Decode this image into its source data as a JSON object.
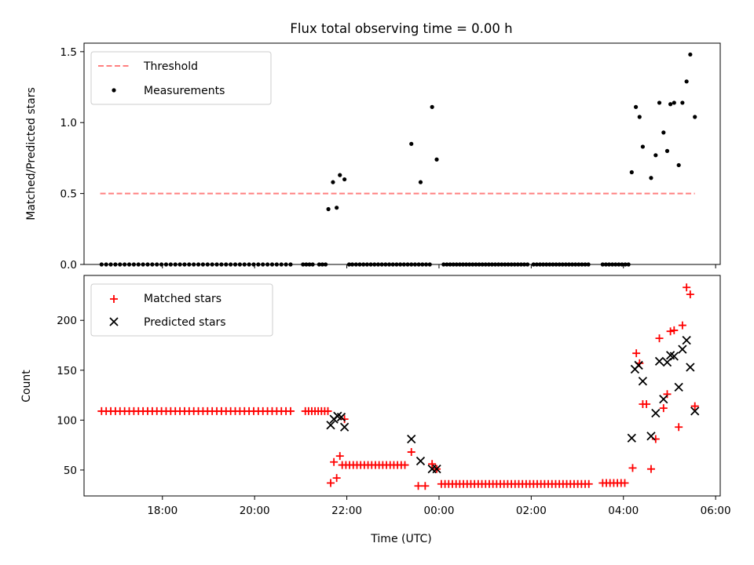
{
  "chart_data": [
    {
      "type": "scatter",
      "title": "Flux total observing time = 0.00 h",
      "xlabel": "",
      "ylabel": "Matched/Predicted stars",
      "xlim_hours": [
        16.3,
        30.1
      ],
      "ylim": [
        0,
        1.56
      ],
      "yticks": [
        "0.0",
        "0.5",
        "1.0",
        "1.5"
      ],
      "legend": {
        "placement": "top-left",
        "entries": [
          "Threshold",
          "Measurements"
        ]
      },
      "threshold": {
        "name": "Threshold",
        "value": 0.5,
        "x_range_hours": [
          16.65,
          29.55
        ],
        "color": "#ff7f7f"
      },
      "series": [
        {
          "name": "Measurements",
          "color": "#000000",
          "zero_points_hours": [
            16.68,
            16.78,
            16.88,
            16.98,
            17.08,
            17.18,
            17.28,
            17.38,
            17.48,
            17.58,
            17.68,
            17.78,
            17.88,
            17.98,
            18.08,
            18.18,
            18.28,
            18.38,
            18.48,
            18.58,
            18.68,
            18.78,
            18.88,
            18.98,
            19.08,
            19.18,
            19.28,
            19.38,
            19.48,
            19.58,
            19.68,
            19.78,
            19.88,
            19.98,
            20.08,
            20.18,
            20.28,
            20.38,
            20.48,
            20.58,
            20.68,
            20.78,
            21.05,
            21.12,
            21.19,
            21.26,
            21.4,
            21.47,
            21.54,
            22.05,
            22.12,
            22.2,
            22.28,
            22.36,
            22.44,
            22.52,
            22.6,
            22.68,
            22.76,
            22.84,
            22.92,
            23,
            23.08,
            23.16,
            23.24,
            23.32,
            23.4,
            23.48,
            23.56,
            23.64,
            23.72,
            23.8,
            24.1,
            24.17,
            24.24,
            24.31,
            24.38,
            24.45,
            24.52,
            24.59,
            24.66,
            24.73,
            24.8,
            24.87,
            24.94,
            25.01,
            25.08,
            25.15,
            25.22,
            25.29,
            25.36,
            25.43,
            25.5,
            25.57,
            25.64,
            25.71,
            25.78,
            25.85,
            25.92,
            26.05,
            26.12,
            26.19,
            26.26,
            26.33,
            26.4,
            26.47,
            26.54,
            26.61,
            26.68,
            26.75,
            26.82,
            26.89,
            26.96,
            27.03,
            27.1,
            27.17,
            27.24,
            27.55,
            27.62,
            27.69,
            27.76,
            27.83,
            27.9,
            27.97,
            28.04,
            28.11
          ],
          "points": [
            {
              "x": 21.6,
              "y": 0.39
            },
            {
              "x": 21.7,
              "y": 0.58
            },
            {
              "x": 21.78,
              "y": 0.4
            },
            {
              "x": 21.85,
              "y": 0.63
            },
            {
              "x": 21.95,
              "y": 0.6
            },
            {
              "x": 23.4,
              "y": 0.85
            },
            {
              "x": 23.6,
              "y": 0.58
            },
            {
              "x": 23.85,
              "y": 1.11
            },
            {
              "x": 23.95,
              "y": 0.74
            },
            {
              "x": 28.18,
              "y": 0.65
            },
            {
              "x": 28.27,
              "y": 1.11
            },
            {
              "x": 28.35,
              "y": 1.04
            },
            {
              "x": 28.42,
              "y": 0.83
            },
            {
              "x": 28.6,
              "y": 0.61
            },
            {
              "x": 28.7,
              "y": 0.77
            },
            {
              "x": 28.78,
              "y": 1.14
            },
            {
              "x": 28.87,
              "y": 0.93
            },
            {
              "x": 28.95,
              "y": 0.8
            },
            {
              "x": 29.02,
              "y": 1.13
            },
            {
              "x": 29.1,
              "y": 1.14
            },
            {
              "x": 29.2,
              "y": 0.7
            },
            {
              "x": 29.28,
              "y": 1.14
            },
            {
              "x": 29.37,
              "y": 1.29
            },
            {
              "x": 29.45,
              "y": 1.48
            },
            {
              "x": 29.55,
              "y": 1.04
            }
          ]
        }
      ]
    },
    {
      "type": "scatter",
      "title": "",
      "xlabel": "Time (UTC)",
      "ylabel": "Count",
      "xlim_hours": [
        16.3,
        30.1
      ],
      "ylim": [
        24,
        245
      ],
      "yticks": [
        "50",
        "100",
        "150",
        "200"
      ],
      "xticks_hours": [
        18,
        20,
        22,
        24,
        26,
        28,
        30
      ],
      "xticks": [
        "18:00",
        "20:00",
        "22:00",
        "00:00",
        "02:00",
        "04:00",
        "06:00"
      ],
      "legend": {
        "placement": "top-left",
        "entries": [
          "Matched stars",
          "Predicted stars"
        ]
      },
      "series": [
        {
          "name": "Matched stars",
          "marker": "plus",
          "color": "#ff0000",
          "constant_runs": [
            {
              "value": 109,
              "from_hours": 16.68,
              "to_hours": 20.78,
              "step_hours": 0.1
            },
            {
              "value": 109,
              "from_hours": 21.1,
              "to_hours": 21.6,
              "step_hours": 0.07
            },
            {
              "value": 55,
              "from_hours": 21.9,
              "to_hours": 23.3,
              "step_hours": 0.08
            },
            {
              "value": 36,
              "from_hours": 24.05,
              "to_hours": 27.25,
              "step_hours": 0.08
            },
            {
              "value": 37,
              "from_hours": 27.55,
              "to_hours": 28.1,
              "step_hours": 0.08
            }
          ],
          "points": [
            {
              "x": 21.65,
              "y": 37
            },
            {
              "x": 21.72,
              "y": 58
            },
            {
              "x": 21.78,
              "y": 42
            },
            {
              "x": 21.85,
              "y": 64
            },
            {
              "x": 21.95,
              "y": 101
            },
            {
              "x": 23.4,
              "y": 68
            },
            {
              "x": 23.55,
              "y": 34
            },
            {
              "x": 23.7,
              "y": 34
            },
            {
              "x": 23.85,
              "y": 56
            },
            {
              "x": 23.95,
              "y": 51
            },
            {
              "x": 28.2,
              "y": 52
            },
            {
              "x": 28.28,
              "y": 167
            },
            {
              "x": 28.35,
              "y": 157
            },
            {
              "x": 28.42,
              "y": 116
            },
            {
              "x": 28.5,
              "y": 116
            },
            {
              "x": 28.6,
              "y": 51
            },
            {
              "x": 28.7,
              "y": 81
            },
            {
              "x": 28.78,
              "y": 182
            },
            {
              "x": 28.87,
              "y": 112
            },
            {
              "x": 28.95,
              "y": 126
            },
            {
              "x": 29.02,
              "y": 189
            },
            {
              "x": 29.1,
              "y": 190
            },
            {
              "x": 29.2,
              "y": 93
            },
            {
              "x": 29.28,
              "y": 195
            },
            {
              "x": 29.37,
              "y": 233
            },
            {
              "x": 29.45,
              "y": 226
            },
            {
              "x": 29.55,
              "y": 114
            }
          ]
        },
        {
          "name": "Predicted stars",
          "marker": "x",
          "color": "#000000",
          "points": [
            {
              "x": 21.65,
              "y": 95
            },
            {
              "x": 21.72,
              "y": 101
            },
            {
              "x": 21.8,
              "y": 104
            },
            {
              "x": 21.88,
              "y": 103
            },
            {
              "x": 21.95,
              "y": 93
            },
            {
              "x": 23.4,
              "y": 81
            },
            {
              "x": 23.6,
              "y": 59
            },
            {
              "x": 23.85,
              "y": 51
            },
            {
              "x": 23.95,
              "y": 51
            },
            {
              "x": 28.18,
              "y": 82
            },
            {
              "x": 28.25,
              "y": 151
            },
            {
              "x": 28.33,
              "y": 155
            },
            {
              "x": 28.42,
              "y": 139
            },
            {
              "x": 28.6,
              "y": 84
            },
            {
              "x": 28.7,
              "y": 107
            },
            {
              "x": 28.78,
              "y": 159
            },
            {
              "x": 28.87,
              "y": 121
            },
            {
              "x": 28.95,
              "y": 158
            },
            {
              "x": 29.02,
              "y": 165
            },
            {
              "x": 29.1,
              "y": 164
            },
            {
              "x": 29.2,
              "y": 133
            },
            {
              "x": 29.28,
              "y": 171
            },
            {
              "x": 29.37,
              "y": 180
            },
            {
              "x": 29.45,
              "y": 153
            },
            {
              "x": 29.55,
              "y": 109
            }
          ]
        }
      ]
    }
  ]
}
